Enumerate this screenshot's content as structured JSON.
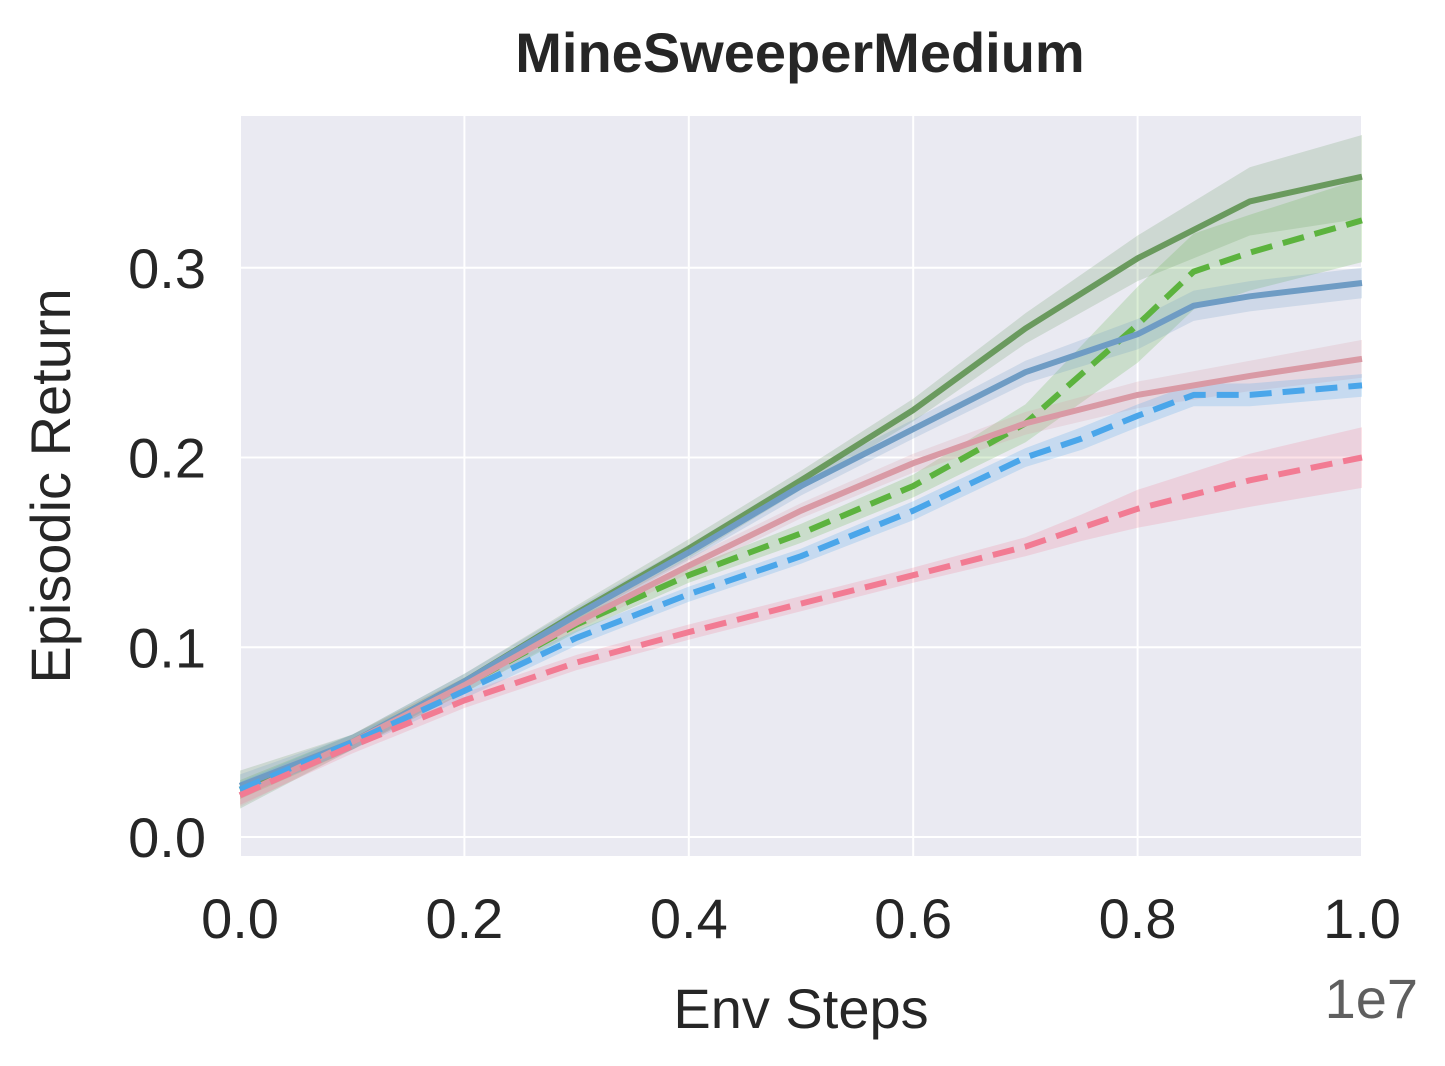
{
  "chart_data": {
    "type": "line",
    "title": "MineSweeperMedium",
    "xlabel": "Env Steps",
    "ylabel": "Episodic Return",
    "x_offset_label": "1e7",
    "xlim": [
      0.0,
      1.0
    ],
    "ylim": [
      -0.01,
      0.38
    ],
    "x_ticks": [
      0.0,
      0.2,
      0.4,
      0.6,
      0.8,
      1.0
    ],
    "x_tick_labels": [
      "0.0",
      "0.2",
      "0.4",
      "0.6",
      "0.8",
      "1.0"
    ],
    "y_ticks": [
      0.0,
      0.1,
      0.2,
      0.3
    ],
    "y_tick_labels": [
      "0.0",
      "0.1",
      "0.2",
      "0.3"
    ],
    "grid": true,
    "background": "#eaeaf2",
    "series": [
      {
        "name": "green-solid",
        "color": "#6a9a5e",
        "dash": false,
        "x": [
          0.0,
          0.1,
          0.2,
          0.3,
          0.4,
          0.5,
          0.6,
          0.7,
          0.8,
          0.9,
          1.0
        ],
        "values": [
          0.025,
          0.05,
          0.082,
          0.118,
          0.152,
          0.188,
          0.225,
          0.268,
          0.305,
          0.335,
          0.348
        ],
        "spread": [
          0.01,
          0.004,
          0.004,
          0.004,
          0.005,
          0.005,
          0.006,
          0.008,
          0.012,
          0.018,
          0.022
        ]
      },
      {
        "name": "green-dashed",
        "color": "#5cb33e",
        "dash": true,
        "x": [
          0.0,
          0.1,
          0.2,
          0.3,
          0.4,
          0.5,
          0.6,
          0.7,
          0.8,
          0.85,
          0.9,
          1.0
        ],
        "values": [
          0.025,
          0.05,
          0.08,
          0.112,
          0.138,
          0.16,
          0.185,
          0.218,
          0.27,
          0.298,
          0.308,
          0.325
        ],
        "spread": [
          0.005,
          0.004,
          0.004,
          0.004,
          0.004,
          0.005,
          0.006,
          0.01,
          0.02,
          0.02,
          0.02,
          0.022
        ]
      },
      {
        "name": "blue-solid",
        "color": "#6f9cc4",
        "dash": false,
        "x": [
          0.0,
          0.1,
          0.2,
          0.3,
          0.4,
          0.5,
          0.6,
          0.7,
          0.8,
          0.85,
          0.9,
          1.0
        ],
        "values": [
          0.027,
          0.05,
          0.082,
          0.117,
          0.15,
          0.185,
          0.215,
          0.245,
          0.265,
          0.28,
          0.285,
          0.292
        ],
        "spread": [
          0.006,
          0.004,
          0.004,
          0.004,
          0.004,
          0.005,
          0.005,
          0.006,
          0.008,
          0.008,
          0.008,
          0.008
        ]
      },
      {
        "name": "pink-solid",
        "color": "#d99aa5",
        "dash": false,
        "x": [
          0.0,
          0.1,
          0.2,
          0.3,
          0.4,
          0.5,
          0.6,
          0.7,
          0.8,
          0.9,
          1.0
        ],
        "values": [
          0.022,
          0.05,
          0.08,
          0.113,
          0.143,
          0.172,
          0.197,
          0.218,
          0.233,
          0.243,
          0.252
        ],
        "spread": [
          0.006,
          0.004,
          0.004,
          0.004,
          0.004,
          0.004,
          0.005,
          0.006,
          0.007,
          0.008,
          0.01
        ]
      },
      {
        "name": "blue-dashed",
        "color": "#4aa6ea",
        "dash": true,
        "x": [
          0.0,
          0.1,
          0.2,
          0.3,
          0.4,
          0.5,
          0.6,
          0.7,
          0.75,
          0.8,
          0.85,
          0.9,
          1.0
        ],
        "values": [
          0.025,
          0.05,
          0.077,
          0.105,
          0.128,
          0.148,
          0.172,
          0.2,
          0.21,
          0.222,
          0.233,
          0.233,
          0.238
        ],
        "spread": [
          0.004,
          0.004,
          0.004,
          0.004,
          0.004,
          0.004,
          0.005,
          0.005,
          0.006,
          0.006,
          0.006,
          0.006,
          0.006
        ]
      },
      {
        "name": "red-dashed",
        "color": "#f27b93",
        "dash": true,
        "x": [
          0.0,
          0.1,
          0.2,
          0.3,
          0.4,
          0.5,
          0.6,
          0.7,
          0.75,
          0.8,
          0.9,
          1.0
        ],
        "values": [
          0.022,
          0.048,
          0.072,
          0.092,
          0.108,
          0.123,
          0.138,
          0.153,
          0.163,
          0.173,
          0.188,
          0.2
        ],
        "spread": [
          0.005,
          0.004,
          0.004,
          0.004,
          0.004,
          0.004,
          0.004,
          0.005,
          0.007,
          0.01,
          0.014,
          0.016
        ]
      }
    ]
  }
}
